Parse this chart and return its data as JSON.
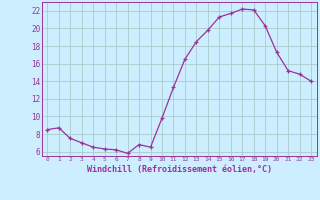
{
  "x": [
    0,
    1,
    2,
    3,
    4,
    5,
    6,
    7,
    8,
    9,
    10,
    11,
    12,
    13,
    14,
    15,
    16,
    17,
    18,
    19,
    20,
    21,
    22,
    23
  ],
  "y": [
    8.5,
    8.7,
    7.5,
    7.0,
    6.5,
    6.3,
    6.2,
    5.8,
    6.8,
    6.5,
    9.8,
    13.3,
    16.5,
    18.5,
    19.8,
    21.3,
    21.7,
    22.2,
    22.1,
    20.3,
    17.3,
    15.2,
    14.8,
    14.0
  ],
  "line_color": "#993399",
  "marker": "+",
  "bg_color": "#cceeff",
  "grid_color": "#aacccc",
  "axis_color": "#993399",
  "xlabel": "Windchill (Refroidissement éolien,°C)",
  "ylim": [
    5.5,
    23.0
  ],
  "xlim": [
    -0.5,
    23.5
  ],
  "yticks": [
    6,
    8,
    10,
    12,
    14,
    16,
    18,
    20,
    22
  ],
  "xticks": [
    0,
    1,
    2,
    3,
    4,
    5,
    6,
    7,
    8,
    9,
    10,
    11,
    12,
    13,
    14,
    15,
    16,
    17,
    18,
    19,
    20,
    21,
    22,
    23
  ]
}
